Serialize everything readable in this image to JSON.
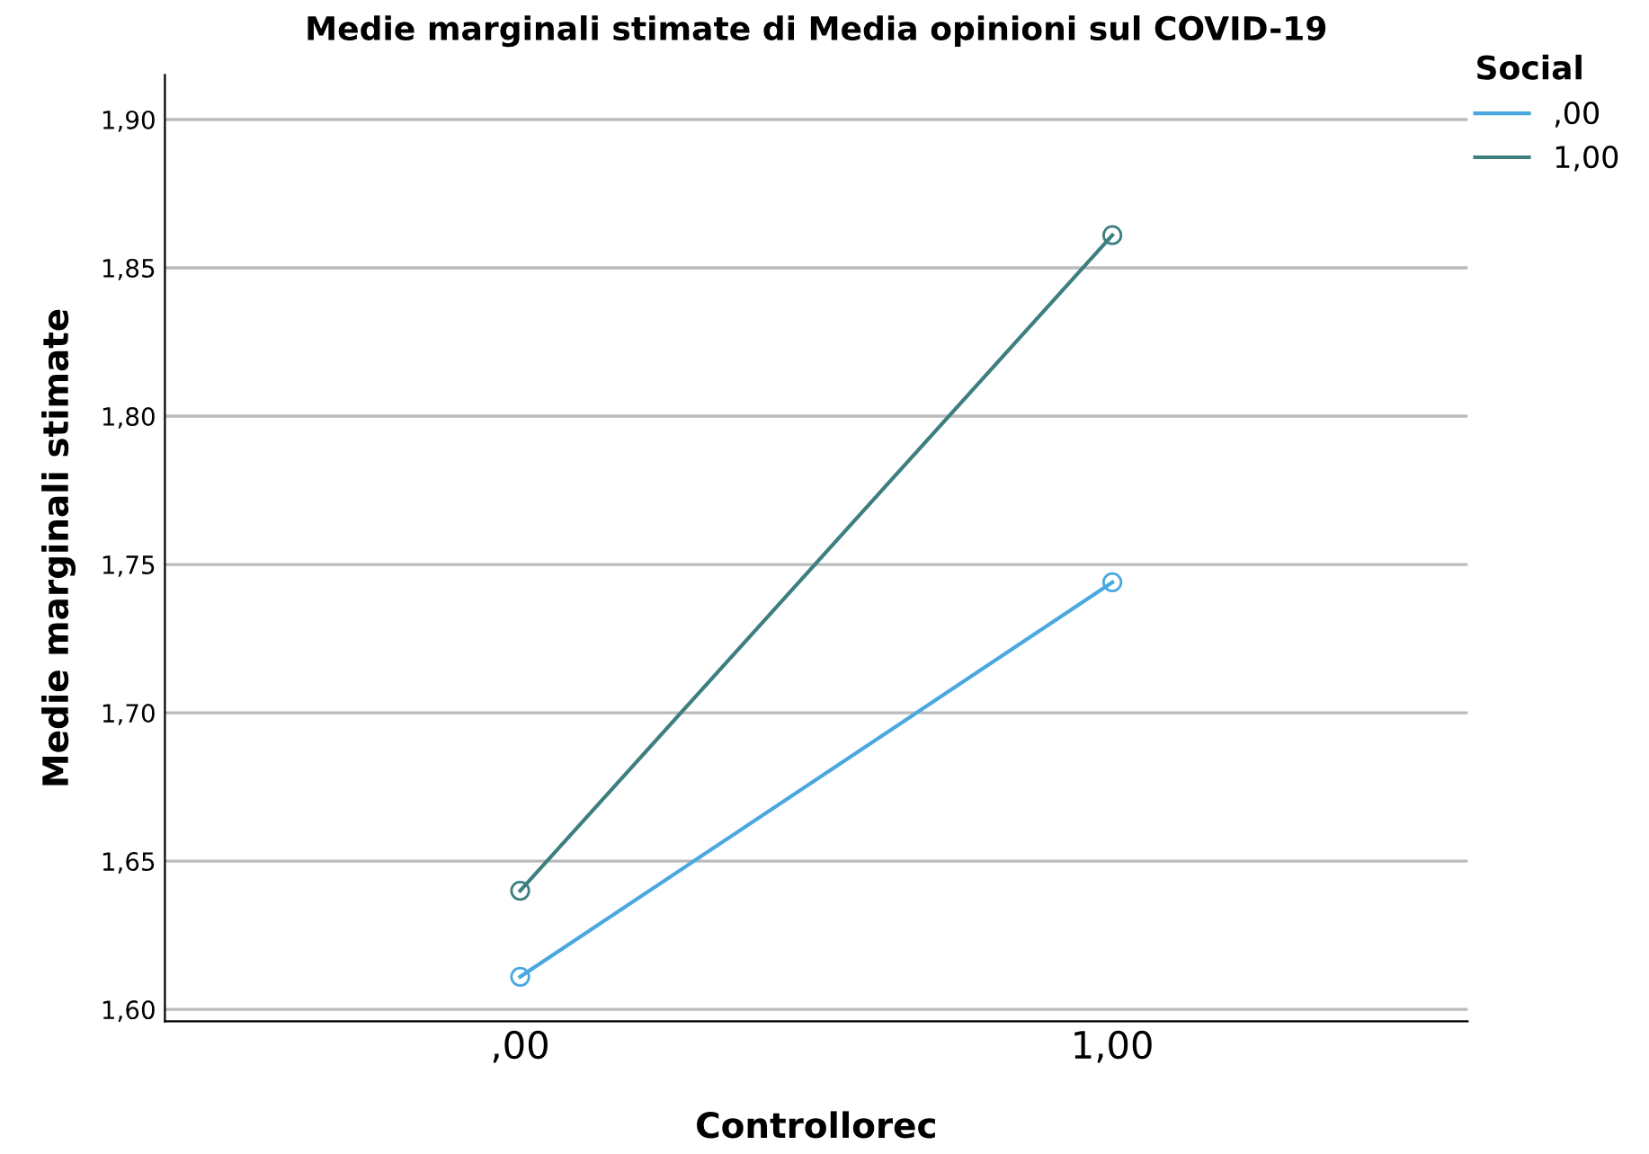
{
  "chart_data": {
    "type": "line",
    "title": "Medie marginali stimate di Media opinioni sul COVID-19",
    "xlabel": "Controllorec",
    "ylabel": "Medie marginali stimate",
    "legend_title": "Social",
    "categories": [
      ",00",
      "1,00"
    ],
    "series": [
      {
        "name": ",00",
        "color": "#4aa8e0",
        "values": [
          1.611,
          1.744
        ]
      },
      {
        "name": "1,00",
        "color": "#3d7f7f",
        "values": [
          1.64,
          1.861
        ]
      }
    ],
    "ylim": [
      1.596,
      1.915
    ],
    "yticks": [
      {
        "value": 1.6,
        "label": "1,60"
      },
      {
        "value": 1.65,
        "label": "1,65"
      },
      {
        "value": 1.7,
        "label": "1,70"
      },
      {
        "value": 1.75,
        "label": "1,75"
      },
      {
        "value": 1.8,
        "label": "1,80"
      },
      {
        "value": 1.85,
        "label": "1,85"
      },
      {
        "value": 1.9,
        "label": "1,90"
      }
    ],
    "grid": "y",
    "legend": "top right",
    "marker": "circle",
    "line_style": "solid"
  }
}
